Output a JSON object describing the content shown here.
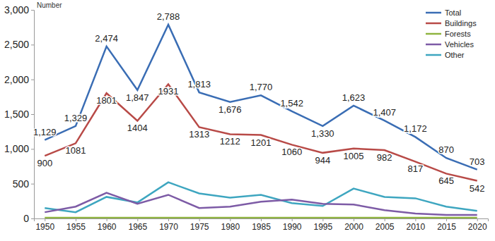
{
  "chart_data": {
    "type": "line",
    "y_label": "Number",
    "categories": [
      "1950",
      "1955",
      "1960",
      "1965",
      "1970",
      "1975",
      "1980",
      "1985",
      "1990",
      "1995",
      "2000",
      "2005",
      "2010",
      "2015",
      "2020"
    ],
    "series": [
      {
        "name": "Total",
        "color": "#3a6db4",
        "data_labels": true,
        "values": [
          1129,
          1329,
          2474,
          1847,
          2788,
          1813,
          1676,
          1770,
          1542,
          1330,
          1623,
          1407,
          1172,
          870,
          703
        ],
        "value_labels": [
          "1,129",
          "1,329",
          "2,474",
          "1,847",
          "2,788",
          "1,813",
          "1,676",
          "1,770",
          "1,542",
          "1,330",
          "1,623",
          "1,407",
          "1,172",
          "870",
          "703"
        ]
      },
      {
        "name": "Buildings",
        "color": "#b84a47",
        "data_labels": true,
        "values": [
          900,
          1081,
          1801,
          1404,
          1931,
          1313,
          1212,
          1201,
          1060,
          944,
          1005,
          982,
          817,
          645,
          542
        ]
      },
      {
        "name": "Forests",
        "color": "#8fb440",
        "values": [
          10,
          10,
          10,
          10,
          10,
          10,
          10,
          10,
          10,
          10,
          10,
          10,
          10,
          10,
          10
        ]
      },
      {
        "name": "Vehicles",
        "color": "#7d5ba6",
        "values": [
          90,
          170,
          370,
          210,
          340,
          150,
          170,
          240,
          270,
          210,
          200,
          120,
          70,
          50,
          50
        ]
      },
      {
        "name": "Other",
        "color": "#3ea6c0",
        "values": [
          150,
          90,
          310,
          230,
          520,
          360,
          300,
          340,
          220,
          180,
          430,
          310,
          290,
          170,
          110
        ]
      }
    ],
    "ylim": [
      0,
      3000
    ],
    "yticks": [
      0,
      500,
      {
        "value": 1000,
        "label": "1,000"
      },
      {
        "value": 1500,
        "label": "1,500"
      },
      {
        "value": 2000,
        "label": "2,000"
      },
      {
        "value": 2500,
        "label": "2,500"
      },
      {
        "value": 3000,
        "label": "3,000"
      }
    ],
    "grid": false,
    "legend": "upper right"
  }
}
